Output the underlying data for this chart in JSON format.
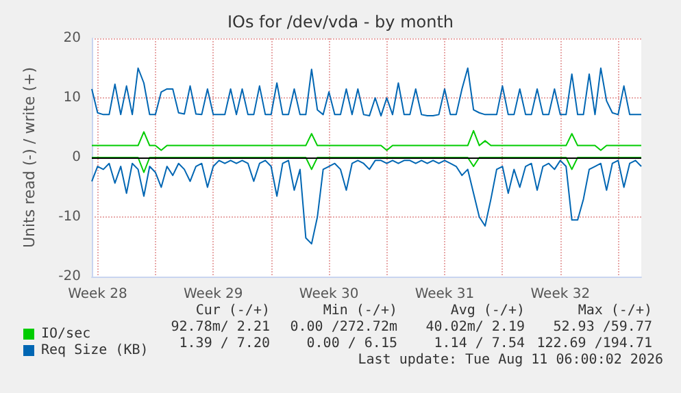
{
  "chart_data": {
    "type": "line",
    "title": "IOs for /dev/vda - by month",
    "ylabel": "Units read (-) / write (+)",
    "categories": [
      null,
      "Week 28",
      null,
      null,
      null,
      null,
      null,
      null,
      null,
      null,
      null,
      null,
      null,
      null,
      null,
      null,
      null,
      null,
      null,
      null,
      null,
      "Week 29",
      null,
      null,
      null,
      null,
      null,
      null,
      null,
      null,
      null,
      null,
      null,
      null,
      null,
      null,
      null,
      null,
      null,
      null,
      null,
      "Week 30",
      null,
      null,
      null,
      null,
      null,
      null,
      null,
      null,
      null,
      null,
      null,
      null,
      null,
      null,
      null,
      null,
      null,
      null,
      null,
      "Week 31",
      null,
      null,
      null,
      null,
      null,
      null,
      null,
      null,
      null,
      null,
      null,
      null,
      null,
      null,
      null,
      null,
      null,
      null,
      null,
      "Week 32",
      null,
      null,
      null,
      null,
      null,
      null,
      null,
      null,
      null,
      null,
      null,
      null,
      null,
      null
    ],
    "series": [
      {
        "name": "IO/sec",
        "color": "#00cc00",
        "values": [
          2,
          2,
          2,
          2,
          2,
          2,
          2,
          2,
          2,
          4.3,
          2,
          2,
          1.2,
          2,
          2,
          2,
          2,
          2,
          2,
          2,
          2,
          2,
          2,
          2,
          2,
          2,
          2,
          2,
          2,
          2,
          2,
          2,
          2,
          2,
          2,
          2,
          2,
          2,
          4,
          2,
          2,
          2,
          2,
          2,
          2,
          2,
          2,
          2,
          2,
          2,
          2,
          1.2,
          2,
          2,
          2,
          2,
          2,
          2,
          2,
          2,
          2,
          2,
          2,
          2,
          2,
          2,
          4.5,
          2,
          2.8,
          2,
          2,
          2,
          2,
          2,
          2,
          2,
          2,
          2,
          2,
          2,
          2,
          2,
          2,
          4,
          2,
          2,
          2,
          2,
          1.2,
          2,
          2,
          2,
          2,
          2,
          2,
          2
        ]
      },
      {
        "color": "#00cc00",
        "values": [
          0,
          0,
          0,
          0,
          0,
          0,
          0,
          0,
          0,
          -2.5,
          0,
          0,
          0,
          0,
          0,
          0,
          0,
          0,
          0,
          0,
          0,
          0,
          0,
          0,
          0,
          0,
          0,
          0,
          0,
          0,
          0,
          0,
          0,
          0,
          0,
          0,
          0,
          0,
          -2,
          0,
          0,
          0,
          0,
          0,
          0,
          0,
          0,
          0,
          0,
          0,
          0,
          0,
          0,
          0,
          0,
          0,
          0,
          0,
          0,
          0,
          0,
          0,
          0,
          0,
          0,
          0,
          -1.5,
          0,
          0,
          0,
          0,
          0,
          0,
          0,
          0,
          0,
          0,
          0,
          0,
          0,
          0,
          0,
          0,
          -2,
          0,
          0,
          0,
          0,
          0,
          0,
          0,
          0,
          0,
          0,
          0,
          0
        ]
      },
      {
        "name": "Req Size (KB)",
        "color": "#0066b3",
        "values": [
          11.5,
          7.5,
          7.2,
          7.2,
          12.3,
          7.2,
          12,
          7.2,
          15,
          12.5,
          7.2,
          7.2,
          11,
          11.5,
          11.5,
          7.5,
          7.3,
          12,
          7.3,
          7.2,
          11.5,
          7.2,
          7.2,
          7.2,
          11.5,
          7.2,
          11.5,
          7.2,
          7.2,
          12,
          7.2,
          7.2,
          12.5,
          7.2,
          7.2,
          11.5,
          7.2,
          7.2,
          14.8,
          8,
          7.2,
          11,
          7.2,
          7.2,
          11.5,
          7.2,
          11.5,
          7.2,
          7,
          10,
          7,
          10,
          7.2,
          12.5,
          7.2,
          7.2,
          11.5,
          7.2,
          7,
          7,
          7.2,
          11.5,
          7.2,
          7.2,
          11.5,
          15,
          8,
          7.5,
          7.2,
          7.2,
          7.2,
          12,
          7.2,
          7.2,
          11.5,
          7.2,
          7.2,
          11.5,
          7.2,
          7.2,
          11.5,
          7.2,
          7.2,
          14,
          7.2,
          7.2,
          14,
          7.2,
          15,
          9.5,
          7.5,
          7.2,
          12,
          7.2,
          7.2,
          7.2
        ]
      },
      {
        "color": "#0066b3",
        "values": [
          -4,
          -1.5,
          -2,
          -1,
          -4.3,
          -1.5,
          -6,
          -1,
          -2,
          -6.5,
          -1.5,
          -2.5,
          -5,
          -1.5,
          -3,
          -1,
          -2,
          -4,
          -1.5,
          -1,
          -5,
          -1.5,
          -0.5,
          -1,
          -0.5,
          -1,
          -0.5,
          -1,
          -4,
          -1,
          -0.5,
          -1.5,
          -6.5,
          -1,
          -0.5,
          -5.5,
          -2,
          -13.5,
          -14.5,
          -10,
          -2,
          -1.5,
          -1,
          -2,
          -5.5,
          -1,
          -0.5,
          -1,
          -2,
          -0.5,
          -0.5,
          -1,
          -0.5,
          -1,
          -0.5,
          -0.5,
          -1,
          -0.5,
          -1,
          -0.5,
          -1,
          -0.5,
          -1,
          -1.5,
          -3,
          -2,
          -6,
          -10,
          -11.5,
          -7,
          -2,
          -1.5,
          -6,
          -2,
          -5,
          -1.5,
          -1,
          -5.5,
          -1.5,
          -1,
          -2,
          -0.5,
          -1.5,
          -10.5,
          -10.5,
          -7,
          -2,
          -1.5,
          -1,
          -5.5,
          -1,
          -0.5,
          -5,
          -1,
          -0.5,
          -1.5
        ]
      }
    ],
    "ylim": [
      -20,
      20
    ],
    "yticks": [
      -20,
      -10,
      0,
      10,
      20
    ],
    "grid": true,
    "legend": "bottom left",
    "marker": "none",
    "line_style": "solid",
    "ref_lines": [
      {
        "axis": "y",
        "value": 0,
        "color": "#000000"
      }
    ],
    "annotations": [
      "Cur (-/+)",
      "Min (-/+)",
      "Avg (-/+)",
      "Max (-/+)",
      "92.78m/ 2.21",
      "0.00 /272.72m",
      "40.02m/ 2.19",
      "52.93 /59.77",
      "1.39 / 7.20",
      "0.00 / 6.15",
      "1.14 / 7.54",
      "122.69 /194.71",
      "Last update: Tue Aug 11 06:00:02 2026"
    ]
  }
}
